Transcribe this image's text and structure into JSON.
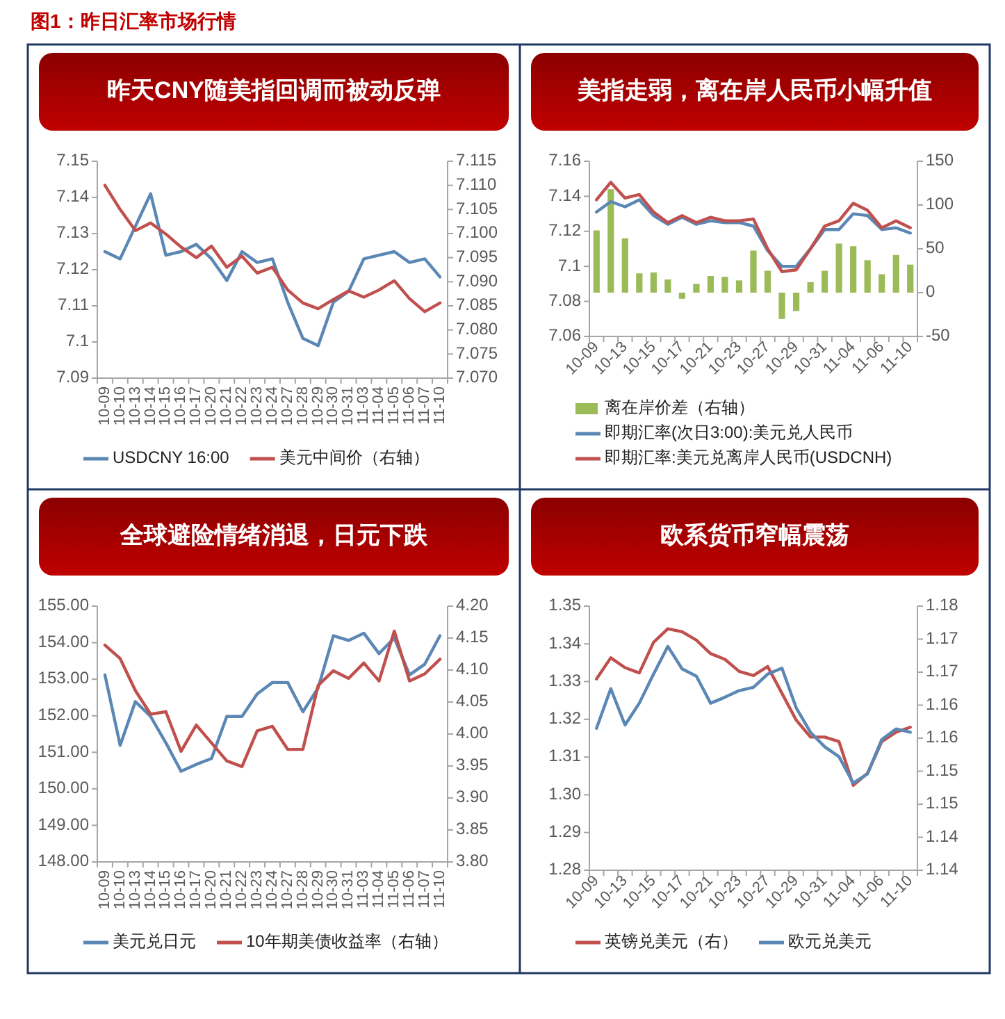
{
  "chart_data": [
    {
      "type": "line",
      "title": "昨天CNY随美指回调而被动反弹",
      "annotations": [
        "图1：昨日汇率市场行情"
      ],
      "categories": [
        "10-09",
        "10-10",
        "10-13",
        "10-14",
        "10-15",
        "10-16",
        "10-17",
        "10-20",
        "10-21",
        "10-22",
        "10-23",
        "10-24",
        "10-27",
        "10-28",
        "10-29",
        "10-30",
        "10-31",
        "11-03",
        "11-04",
        "11-05",
        "11-06",
        "11-07",
        "11-10"
      ],
      "ylim": [
        7.09,
        7.15
      ],
      "yticks": [
        7.09,
        7.1,
        7.11,
        7.12,
        7.13,
        7.14,
        7.15
      ],
      "y2lim": [
        7.07,
        7.115
      ],
      "y2ticks": [
        {
          "value": 7.07,
          "label": "7.070"
        },
        {
          "value": 7.075,
          "label": "7.075"
        },
        {
          "value": 7.08,
          "label": "7.080"
        },
        {
          "value": 7.085,
          "label": "7.085"
        },
        {
          "value": 7.09,
          "label": "7.090"
        },
        {
          "value": 7.095,
          "label": "7.095"
        },
        {
          "value": 7.1,
          "label": "7.100"
        },
        {
          "value": 7.105,
          "label": "7.105"
        },
        {
          "value": 7.11,
          "label": "7.110"
        },
        {
          "value": 7.115,
          "label": "7.115"
        }
      ],
      "legend": "bottom",
      "series": [
        {
          "name": "USDCNY 16:00",
          "color": "#5b87b5",
          "values": [
            7.125,
            7.123,
            7.132,
            7.141,
            7.124,
            7.125,
            7.127,
            7.123,
            7.117,
            7.125,
            7.122,
            7.123,
            7.111,
            7.101,
            7.099,
            7.111,
            7.114,
            7.123,
            7.124,
            7.125,
            7.122,
            7.123,
            7.118
          ]
        },
        {
          "name": "美元中间价（右轴）",
          "color": "#c0504d",
          "axis": "y2",
          "values": [
            7.11,
            7.105,
            7.1006,
            7.1022,
            7.0999,
            7.0972,
            7.095,
            7.0974,
            7.093,
            7.0953,
            7.0918,
            7.093,
            7.0883,
            7.0856,
            7.0844,
            7.0863,
            7.0881,
            7.0868,
            7.0883,
            7.0902,
            7.0865,
            7.0838,
            7.0856
          ]
        }
      ]
    },
    {
      "type": "line",
      "title": "美指走弱，离在岸人民币小幅升值",
      "categories": [
        "10-09",
        null,
        "10-13",
        null,
        "10-15",
        null,
        "10-17",
        null,
        "10-21",
        null,
        "10-23",
        null,
        "10-27",
        null,
        "10-29",
        null,
        "10-31",
        null,
        "11-04",
        null,
        "11-06",
        null,
        "11-10"
      ],
      "ylim": [
        7.06,
        7.16
      ],
      "yticks": [
        7.06,
        7.08,
        7.1,
        7.12,
        7.14,
        7.16
      ],
      "y2lim": [
        -50,
        150
      ],
      "y2ticks": [
        -50,
        0,
        50,
        100,
        150
      ],
      "legend": "bottom",
      "series": [
        {
          "name": "离在岸价差（右轴）",
          "type": "bar",
          "axis": "y2",
          "color": "#9bbb59",
          "values": [
            71,
            118,
            62,
            22,
            23,
            15,
            -7,
            10,
            19,
            18,
            14,
            48,
            25,
            -30,
            -21,
            12,
            25,
            56,
            53,
            37,
            21,
            43,
            32
          ]
        },
        {
          "name": "即期汇率(次日3:00):美元兑人民币",
          "color": "#5b87b5",
          "values": [
            7.131,
            7.137,
            7.134,
            7.138,
            7.129,
            7.124,
            7.128,
            7.124,
            7.126,
            7.125,
            7.125,
            7.123,
            7.109,
            7.1,
            7.1,
            7.11,
            7.121,
            7.121,
            7.13,
            7.129,
            7.121,
            7.122,
            7.119
          ]
        },
        {
          "name": "即期汇率:美元兑离岸人民币(USDCNH)",
          "color": "#c0504d",
          "values": [
            7.138,
            7.148,
            7.139,
            7.141,
            7.131,
            7.125,
            7.129,
            7.125,
            7.128,
            7.126,
            7.126,
            7.127,
            7.11,
            7.097,
            7.098,
            7.11,
            7.123,
            7.126,
            7.136,
            7.132,
            7.122,
            7.126,
            7.122
          ]
        }
      ]
    },
    {
      "type": "line",
      "title": "全球避险情绪消退，日元下跌",
      "categories": [
        "10-09",
        "10-10",
        "10-13",
        "10-14",
        "10-15",
        "10-16",
        "10-17",
        "10-20",
        "10-21",
        "10-22",
        "10-23",
        "10-24",
        "10-27",
        "10-28",
        "10-29",
        "10-30",
        "10-31",
        "11-03",
        "11-04",
        "11-05",
        "11-06",
        "11-07",
        "11-10"
      ],
      "ylim": [
        148,
        155
      ],
      "yticks": [
        {
          "value": 148,
          "label": "148.00"
        },
        {
          "value": 149,
          "label": "149.00"
        },
        {
          "value": 150,
          "label": "150.00"
        },
        {
          "value": 151,
          "label": "151.00"
        },
        {
          "value": 152,
          "label": "152.00"
        },
        {
          "value": 153,
          "label": "153.00"
        },
        {
          "value": 154,
          "label": "154.00"
        },
        {
          "value": 155,
          "label": "155.00"
        }
      ],
      "y2lim": [
        3.8,
        4.2
      ],
      "y2ticks": [
        {
          "value": 3.8,
          "label": "3.80"
        },
        3.85,
        {
          "value": 3.9,
          "label": "3.90"
        },
        3.95,
        {
          "value": 4.0,
          "label": "4.00"
        },
        4.05,
        {
          "value": 4.1,
          "label": "4.10"
        },
        4.15,
        {
          "value": 4.2,
          "label": "4.20"
        }
      ],
      "legend": "bottom",
      "series": [
        {
          "name": "美元兑日元",
          "color": "#5b87b5",
          "values": [
            153.12,
            151.19,
            152.39,
            151.98,
            151.26,
            150.48,
            150.67,
            150.83,
            151.98,
            151.98,
            152.6,
            152.91,
            152.91,
            152.11,
            152.76,
            154.19,
            154.06,
            154.26,
            153.7,
            154.13,
            153.12,
            153.41,
            154.19
          ]
        },
        {
          "name": "10年期美债收益率（右轴）",
          "color": "#c0504d",
          "axis": "y2",
          "values": [
            4.139,
            4.118,
            4.068,
            4.031,
            4.035,
            3.973,
            4.014,
            3.986,
            3.958,
            3.949,
            4.005,
            4.012,
            3.976,
            3.976,
            4.076,
            4.099,
            4.087,
            4.111,
            4.083,
            4.161,
            4.083,
            4.094,
            4.117
          ]
        }
      ]
    },
    {
      "type": "line",
      "title": "欧系货币窄幅震荡",
      "categories": [
        "10-09",
        null,
        "10-13",
        null,
        "10-15",
        null,
        "10-17",
        null,
        "10-21",
        null,
        "10-23",
        null,
        "10-27",
        null,
        "10-29",
        null,
        "10-31",
        null,
        "11-04",
        null,
        "11-06",
        null,
        "11-10"
      ],
      "ylim": [
        1.28,
        1.35
      ],
      "yticks": [
        {
          "value": 1.28,
          "label": "1.28"
        },
        1.29,
        {
          "value": 1.3,
          "label": "1.30"
        },
        1.31,
        1.32,
        1.33,
        1.34,
        1.35
      ],
      "y2lim": [
        1.14,
        1.18
      ],
      "y2ticks": [
        {
          "value": 1.14,
          "label": "1.14"
        },
        {
          "value": 1.145,
          "label": "1.14"
        },
        {
          "value": 1.15,
          "label": "1.15"
        },
        {
          "value": 1.155,
          "label": "1.15"
        },
        {
          "value": 1.16,
          "label": "1.16"
        },
        {
          "value": 1.165,
          "label": "1.16"
        },
        {
          "value": 1.17,
          "label": "1.17"
        },
        {
          "value": 1.175,
          "label": "1.17"
        },
        {
          "value": 1.18,
          "label": "1.18"
        }
      ],
      "legend": "bottom",
      "series": [
        {
          "name": "英镑兑美元（右）",
          "color": "#c0504d",
          "values": [
            1.3307,
            1.3363,
            1.3337,
            1.3323,
            1.3404,
            1.344,
            1.3432,
            1.341,
            1.3374,
            1.3359,
            1.3327,
            1.3316,
            1.334,
            1.3269,
            1.3198,
            1.3153,
            1.3153,
            1.3141,
            1.3025,
            1.3057,
            1.3141,
            1.3166,
            1.3179
          ]
        },
        {
          "name": "欧元兑美元",
          "color": "#5b87b5",
          "axis": "y2",
          "values": [
            1.1615,
            1.1675,
            1.162,
            1.1653,
            1.1697,
            1.1739,
            1.1705,
            1.1694,
            1.1653,
            1.1662,
            1.1672,
            1.1677,
            1.1697,
            1.1706,
            1.1646,
            1.1609,
            1.1587,
            1.1572,
            1.1532,
            1.1546,
            1.1598,
            1.1614,
            1.1609
          ]
        }
      ]
    }
  ]
}
